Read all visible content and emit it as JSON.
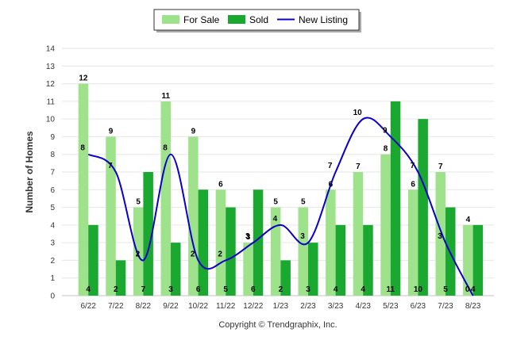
{
  "chart_data": {
    "type": "bar",
    "title": "",
    "xlabel": "",
    "ylabel": "Number of Homes",
    "ylim": [
      0,
      14
    ],
    "ytick_step": 1,
    "grid": true,
    "legend_position": "top-center",
    "categories": [
      "6/22",
      "7/22",
      "8/22",
      "9/22",
      "10/22",
      "11/22",
      "12/22",
      "1/23",
      "2/23",
      "3/23",
      "4/23",
      "5/23",
      "6/23",
      "7/23",
      "8/23"
    ],
    "series": [
      {
        "name": "For Sale",
        "kind": "bar",
        "color": "#9ee28b",
        "values": [
          12,
          9,
          5,
          11,
          9,
          6,
          3,
          5,
          5,
          6,
          7,
          8,
          6,
          7,
          4
        ]
      },
      {
        "name": "Sold",
        "kind": "bar",
        "color": "#1aa830",
        "values": [
          4,
          2,
          7,
          3,
          6,
          5,
          6,
          2,
          3,
          4,
          4,
          11,
          10,
          5,
          4
        ]
      },
      {
        "name": "New Listing",
        "kind": "line",
        "color": "#0a00c8",
        "values": [
          8,
          7,
          2,
          8,
          2,
          2,
          3,
          4,
          3,
          7,
          10,
          9,
          7,
          3,
          0
        ]
      }
    ]
  },
  "footer": {
    "copyright": "Copyright © Trendgraphix, Inc."
  }
}
